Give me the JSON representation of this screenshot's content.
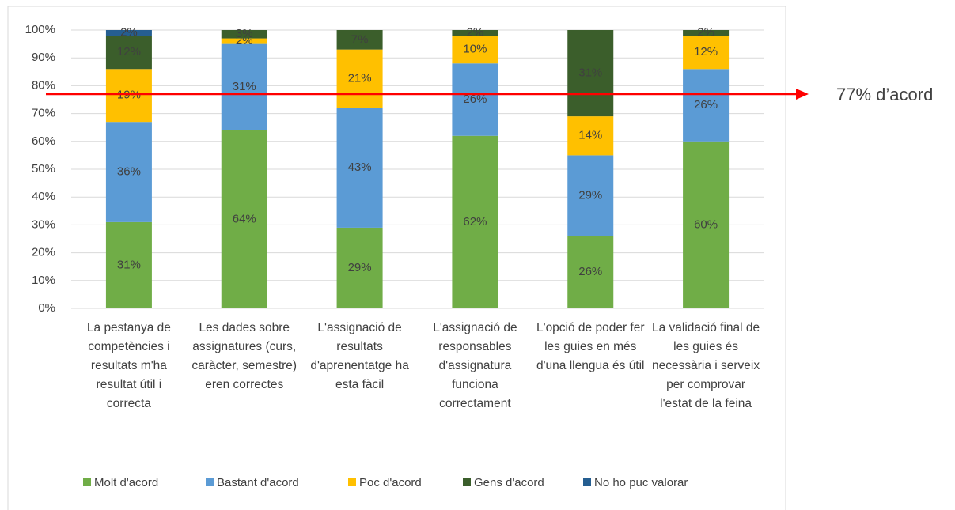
{
  "chart_data": {
    "type": "stacked_bar",
    "categories": [
      "La pestanya de competències i resultats m'ha resultat útil i correcta",
      "Les dades sobre assignatures (curs, caràcter, semestre) eren correctes",
      "L'assignació de resultats d'aprenentatge ha esta fàcil",
      "L'assignació de responsables d'assignatura funciona correctament",
      "L'opció de poder fer les guies en més d'una llengua és útil",
      "La validació final de les guies és necessària i serveix per comprovar l'estat de la feina"
    ],
    "series": [
      {
        "name": "Molt d'acord",
        "color": "#70ad47",
        "values": [
          31,
          64,
          29,
          62,
          26,
          60
        ],
        "value_labels": [
          "31%",
          "64%",
          "29%",
          "62%",
          "26%",
          "60%"
        ]
      },
      {
        "name": "Bastant d'acord",
        "color": "#5b9bd5",
        "values": [
          36,
          31,
          43,
          26,
          29,
          26
        ],
        "value_labels": [
          "36%",
          "31%",
          "43%",
          "26%",
          "29%",
          "26%"
        ]
      },
      {
        "name": "Poc d'acord",
        "color": "#ffc000",
        "values": [
          19,
          2,
          21,
          10,
          14,
          12
        ],
        "value_labels": [
          "19%",
          "2%",
          "21%",
          "10%",
          "14%",
          "12%"
        ]
      },
      {
        "name": "Gens d'acord",
        "color": "#3b5e2b",
        "values": [
          12,
          3,
          7,
          2,
          31,
          2
        ],
        "value_labels": [
          "12%",
          "3%",
          "7%",
          "2%",
          "31%",
          "2%"
        ]
      },
      {
        "name": "No ho puc valorar",
        "color": "#255e91",
        "values": [
          2,
          null,
          null,
          null,
          null,
          null
        ],
        "value_labels": [
          "2%",
          null,
          null,
          null,
          null,
          null
        ]
      }
    ],
    "ylim": [
      0,
      100
    ],
    "yticks": [
      {
        "value": 0,
        "label": "0%"
      },
      {
        "value": 10,
        "label": "10%"
      },
      {
        "value": 20,
        "label": "20%"
      },
      {
        "value": 30,
        "label": "30%"
      },
      {
        "value": 40,
        "label": "40%"
      },
      {
        "value": 50,
        "label": "50%"
      },
      {
        "value": 60,
        "label": "60%"
      },
      {
        "value": 70,
        "label": "70%"
      },
      {
        "value": 80,
        "label": "80%"
      },
      {
        "value": 90,
        "label": "90%"
      },
      {
        "value": 100,
        "label": "100%"
      }
    ],
    "grid": true,
    "annotation": {
      "text": "77% d’acord",
      "value": 77,
      "color": "#ff0000"
    }
  }
}
